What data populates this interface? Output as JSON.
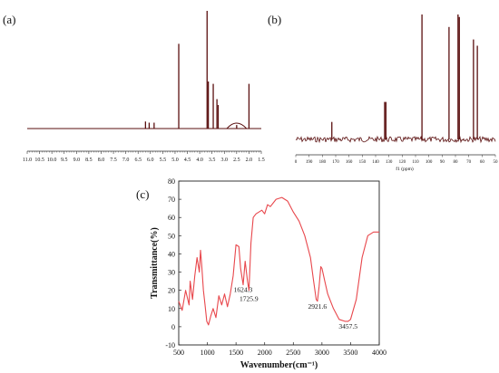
{
  "panels": {
    "a": {
      "label": "(a)"
    },
    "b": {
      "label": "(b)",
      "axis_unit": "f1 (ppm)"
    },
    "c": {
      "label": "(c)"
    }
  },
  "colors": {
    "spectrum_dark": "#5a0f0f",
    "ir_red": "#e8474c",
    "axis": "#333333"
  },
  "chart_data": [
    {
      "type": "line",
      "id": "1H NMR",
      "xlabel": "",
      "ylabel": "",
      "x_tick_labels": [
        "11.0",
        "10.5",
        "10.0",
        "9.5",
        "9.0",
        "8.5",
        "8.0",
        "7.5",
        "7.0",
        "6.5",
        "6.0",
        "5.5",
        "5.0",
        "4.5",
        "4.0",
        "3.5",
        "3.0",
        "2.5",
        "2.0",
        "1.5"
      ],
      "xlim": [
        11.0,
        1.5
      ],
      "peaks": [
        {
          "x": 6.2,
          "h": 0.06
        },
        {
          "x": 6.05,
          "h": 0.05
        },
        {
          "x": 5.85,
          "h": 0.05
        },
        {
          "x": 4.85,
          "h": 0.72
        },
        {
          "x": 3.7,
          "h": 1.0
        },
        {
          "x": 3.65,
          "h": 0.4
        },
        {
          "x": 3.45,
          "h": 0.38
        },
        {
          "x": 3.3,
          "h": 0.25
        },
        {
          "x": 3.25,
          "h": 0.2
        },
        {
          "x": 2.5,
          "h": 0.03
        },
        {
          "x": 2.0,
          "h": 0.38
        }
      ]
    },
    {
      "type": "line",
      "id": "13C NMR",
      "xlabel": "f1 (ppm)",
      "ylabel": "",
      "x_tick_labels": [
        "0",
        "190",
        "180",
        "170",
        "160",
        "150",
        "140",
        "130",
        "120",
        "110",
        "100",
        "90",
        "80",
        "70",
        "60",
        "50"
      ],
      "peaks": [
        {
          "x": 172,
          "h": 0.14
        },
        {
          "x": 131,
          "h": 0.3
        },
        {
          "x": 130,
          "h": 0.3
        },
        {
          "x": 102,
          "h": 1.0
        },
        {
          "x": 81,
          "h": 0.9
        },
        {
          "x": 74,
          "h": 1.0
        },
        {
          "x": 73,
          "h": 0.98
        },
        {
          "x": 62,
          "h": 0.8
        },
        {
          "x": 59,
          "h": 0.75
        }
      ]
    },
    {
      "type": "line",
      "id": "FTIR",
      "xlabel": "Wavenumber(cm⁻¹)",
      "ylabel": "Transmittance(%)",
      "xlim": [
        500,
        4000
      ],
      "ylim": [
        -10,
        80
      ],
      "x_ticks": [
        "500",
        "1000",
        "1500",
        "2000",
        "2500",
        "3000",
        "3500",
        "4000"
      ],
      "y_ticks": [
        "-10",
        "0",
        "10",
        "20",
        "30",
        "40",
        "50",
        "60",
        "70",
        "80"
      ],
      "series": [
        {
          "x": [
            500,
            560,
            620,
            680,
            700,
            740,
            780,
            820,
            860,
            880,
            900,
            930,
            960,
            990,
            1020,
            1060,
            1100,
            1150,
            1200,
            1250,
            1300,
            1350,
            1400,
            1450,
            1500,
            1550,
            1580,
            1624,
            1660,
            1700,
            1725,
            1760,
            1800,
            1850,
            1900,
            1950,
            2000,
            2050,
            2100,
            2200,
            2300,
            2400,
            2500,
            2600,
            2700,
            2800,
            2850,
            2900,
            2921,
            2950,
            2980,
            3000,
            3050,
            3100,
            3200,
            3300,
            3400,
            3457,
            3500,
            3600,
            3700,
            3800,
            3900,
            4000
          ],
          "y": [
            14,
            9,
            20,
            12,
            25,
            15,
            28,
            38,
            30,
            42,
            34,
            20,
            12,
            3,
            1,
            6,
            10,
            5,
            17,
            12,
            18,
            11,
            18,
            28,
            45,
            44,
            32,
            23,
            36,
            25,
            20,
            46,
            60,
            62,
            63,
            64,
            62,
            67,
            66,
            70,
            71,
            69,
            63,
            58,
            50,
            38,
            26,
            15,
            14,
            22,
            33,
            32,
            25,
            18,
            10,
            4,
            3,
            3,
            4,
            15,
            38,
            50,
            52,
            52
          ]
        }
      ],
      "annotations": [
        {
          "text": "1624.3",
          "x": 1624,
          "y": 19
        },
        {
          "text": "1725.9",
          "x": 1725,
          "y": 14
        },
        {
          "text": "2921.6",
          "x": 2921,
          "y": 10
        },
        {
          "text": "3457.5",
          "x": 3457,
          "y": -1
        }
      ]
    }
  ]
}
